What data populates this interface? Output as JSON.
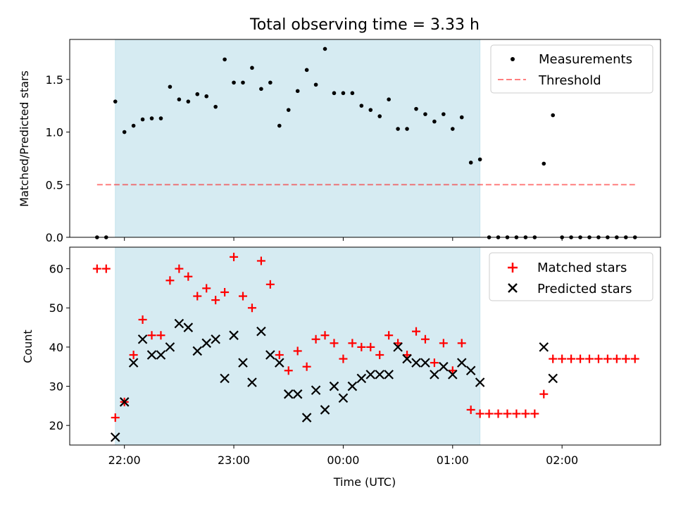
{
  "figure": {
    "title": "Total observing time = 3.33 h",
    "xlabel": "Time (UTC)"
  },
  "colors": {
    "shade": "#add8e6",
    "threshold": "#ff0000",
    "measurements": "#000000",
    "matched": "#ff0000",
    "predicted": "#000000"
  },
  "chart_data": [
    {
      "type": "scatter",
      "panel": "top",
      "ylabel": "Matched/Predicted stars",
      "ylim": [
        0,
        1.88
      ],
      "yticks": [
        0.0,
        0.5,
        1.0,
        1.5
      ],
      "ytick_labels": [
        "0.0",
        "0.5",
        "1.0",
        "1.5"
      ],
      "xlim": [
        "21:30",
        "02:54"
      ],
      "xticks": [
        "22:00",
        "23:00",
        "00:00",
        "01:00",
        "02:00"
      ],
      "shaded_interval": [
        "21:55",
        "01:15"
      ],
      "legend_position": "upper right",
      "series": [
        {
          "name": "Measurements",
          "marker": "dot",
          "x": [
            "21:45",
            "21:50",
            "21:55",
            "22:00",
            "22:05",
            "22:10",
            "22:15",
            "22:20",
            "22:25",
            "22:30",
            "22:35",
            "22:40",
            "22:45",
            "22:50",
            "22:55",
            "23:00",
            "23:05",
            "23:10",
            "23:15",
            "23:20",
            "23:25",
            "23:30",
            "23:35",
            "23:40",
            "23:45",
            "23:50",
            "23:55",
            "00:00",
            "00:05",
            "00:10",
            "00:15",
            "00:20",
            "00:25",
            "00:30",
            "00:35",
            "00:40",
            "00:45",
            "00:50",
            "00:55",
            "01:00",
            "01:05",
            "01:10",
            "01:15",
            "01:20",
            "01:25",
            "01:30",
            "01:35",
            "01:40",
            "01:45",
            "01:50",
            "01:55",
            "02:00",
            "02:05",
            "02:10",
            "02:15",
            "02:20",
            "02:25",
            "02:30",
            "02:35",
            "02:40"
          ],
          "y": [
            0.0,
            0.0,
            1.29,
            1.0,
            1.06,
            1.12,
            1.13,
            1.13,
            1.43,
            1.31,
            1.29,
            1.36,
            1.34,
            1.24,
            1.69,
            1.47,
            1.47,
            1.61,
            1.41,
            1.47,
            1.06,
            1.21,
            1.39,
            1.59,
            1.45,
            1.79,
            1.37,
            1.37,
            1.37,
            1.25,
            1.21,
            1.15,
            1.31,
            1.03,
            1.03,
            1.22,
            1.17,
            1.1,
            1.17,
            1.03,
            1.14,
            0.71,
            0.74,
            0.0,
            0.0,
            0.0,
            0.0,
            0.0,
            0.0,
            0.7,
            1.16,
            0.0,
            0.0,
            0.0,
            0.0,
            0.0,
            0.0,
            0.0,
            0.0,
            0.0
          ]
        },
        {
          "name": "Threshold",
          "style": "dashed",
          "x": [
            "21:45",
            "02:40"
          ],
          "y": [
            0.5,
            0.5
          ]
        }
      ]
    },
    {
      "type": "scatter",
      "panel": "bottom",
      "ylabel": "Count",
      "ylim": [
        15,
        65.5
      ],
      "yticks": [
        20,
        30,
        40,
        50,
        60
      ],
      "ytick_labels": [
        "20",
        "30",
        "40",
        "50",
        "60"
      ],
      "xlim": [
        "21:30",
        "02:54"
      ],
      "xticks": [
        "22:00",
        "23:00",
        "00:00",
        "01:00",
        "02:00"
      ],
      "xtick_labels": [
        "22:00",
        "23:00",
        "00:00",
        "01:00",
        "02:00"
      ],
      "shaded_interval": [
        "21:55",
        "01:15"
      ],
      "legend_position": "upper right",
      "series": [
        {
          "name": "Matched stars",
          "marker": "plus",
          "x": [
            "21:45",
            "21:50",
            "21:55",
            "22:00",
            "22:05",
            "22:10",
            "22:15",
            "22:20",
            "22:25",
            "22:30",
            "22:35",
            "22:40",
            "22:45",
            "22:50",
            "22:55",
            "23:00",
            "23:05",
            "23:10",
            "23:15",
            "23:20",
            "23:25",
            "23:30",
            "23:35",
            "23:40",
            "23:45",
            "23:50",
            "23:55",
            "00:00",
            "00:05",
            "00:10",
            "00:15",
            "00:20",
            "00:25",
            "00:30",
            "00:35",
            "00:40",
            "00:45",
            "00:50",
            "00:55",
            "01:00",
            "01:05",
            "01:10",
            "01:15",
            "01:20",
            "01:25",
            "01:30",
            "01:35",
            "01:40",
            "01:45",
            "01:50",
            "01:55",
            "02:00",
            "02:05",
            "02:10",
            "02:15",
            "02:20",
            "02:25",
            "02:30",
            "02:35",
            "02:40"
          ],
          "y": [
            60,
            60,
            22,
            26,
            38,
            47,
            43,
            43,
            57,
            60,
            58,
            53,
            55,
            52,
            54,
            63,
            53,
            50,
            62,
            56,
            38,
            34,
            39,
            35,
            42,
            43,
            41,
            37,
            41,
            40,
            40,
            38,
            43,
            41,
            38,
            44,
            42,
            36,
            41,
            34,
            41,
            24,
            23,
            23,
            23,
            23,
            23,
            23,
            23,
            28,
            37,
            37,
            37,
            37,
            37,
            37,
            37,
            37,
            37,
            37
          ]
        },
        {
          "name": "Predicted stars",
          "marker": "x",
          "x": [
            "21:55",
            "22:00",
            "22:05",
            "22:10",
            "22:15",
            "22:20",
            "22:25",
            "22:30",
            "22:35",
            "22:40",
            "22:45",
            "22:50",
            "22:55",
            "23:00",
            "23:05",
            "23:10",
            "23:15",
            "23:20",
            "23:25",
            "23:30",
            "23:35",
            "23:40",
            "23:45",
            "23:50",
            "23:55",
            "00:00",
            "00:05",
            "00:10",
            "00:15",
            "00:20",
            "00:25",
            "00:30",
            "00:35",
            "00:40",
            "00:45",
            "00:50",
            "00:55",
            "01:00",
            "01:05",
            "01:10",
            "01:15",
            "01:50",
            "01:55"
          ],
          "y": [
            17,
            26,
            36,
            42,
            38,
            38,
            40,
            46,
            45,
            39,
            41,
            42,
            32,
            43,
            36,
            31,
            44,
            38,
            36,
            28,
            28,
            22,
            29,
            24,
            30,
            27,
            30,
            32,
            33,
            33,
            33,
            40,
            37,
            36,
            36,
            33,
            35,
            33,
            36,
            34,
            31,
            40,
            32
          ]
        }
      ]
    }
  ]
}
